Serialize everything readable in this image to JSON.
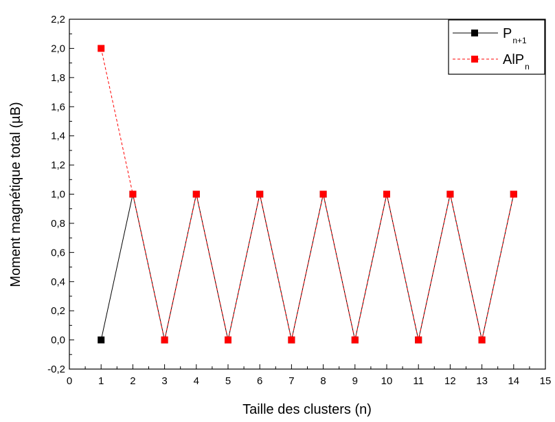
{
  "chart_data": {
    "type": "line",
    "title": "",
    "xlabel": "Taille des clusters (n)",
    "ylabel": "Moment magnétique total (µB)",
    "xlim": [
      0,
      15
    ],
    "ylim": [
      -0.2,
      2.2
    ],
    "x_ticks": [
      "0",
      "1",
      "2",
      "3",
      "4",
      "5",
      "6",
      "7",
      "8",
      "9",
      "10",
      "11",
      "12",
      "13",
      "14",
      "15"
    ],
    "y_ticks": [
      "-0,2",
      "0,0",
      "0,2",
      "0,4",
      "0,6",
      "0,8",
      "1,0",
      "1,2",
      "1,4",
      "1,6",
      "1,8",
      "2,0",
      "2,2"
    ],
    "grid": false,
    "legend_position": "top-right",
    "series": [
      {
        "legend_main": "P",
        "legend_sub": "n+1",
        "color": "#000000",
        "line_style": "solid",
        "marker": "square",
        "x": [
          1,
          2,
          3,
          4,
          5,
          6,
          7,
          8,
          9,
          10,
          11,
          12,
          13,
          14
        ],
        "y": [
          0,
          1,
          0,
          1,
          0,
          1,
          0,
          1,
          0,
          1,
          0,
          1,
          0,
          1
        ]
      },
      {
        "legend_main": "AlP",
        "legend_sub": "n",
        "color": "#ff0000",
        "line_style": "dashed",
        "marker": "square",
        "x": [
          1,
          2,
          3,
          4,
          5,
          6,
          7,
          8,
          9,
          10,
          11,
          12,
          13,
          14
        ],
        "y": [
          2,
          1,
          0,
          1,
          0,
          1,
          0,
          1,
          0,
          1,
          0,
          1,
          0,
          1
        ]
      }
    ]
  }
}
